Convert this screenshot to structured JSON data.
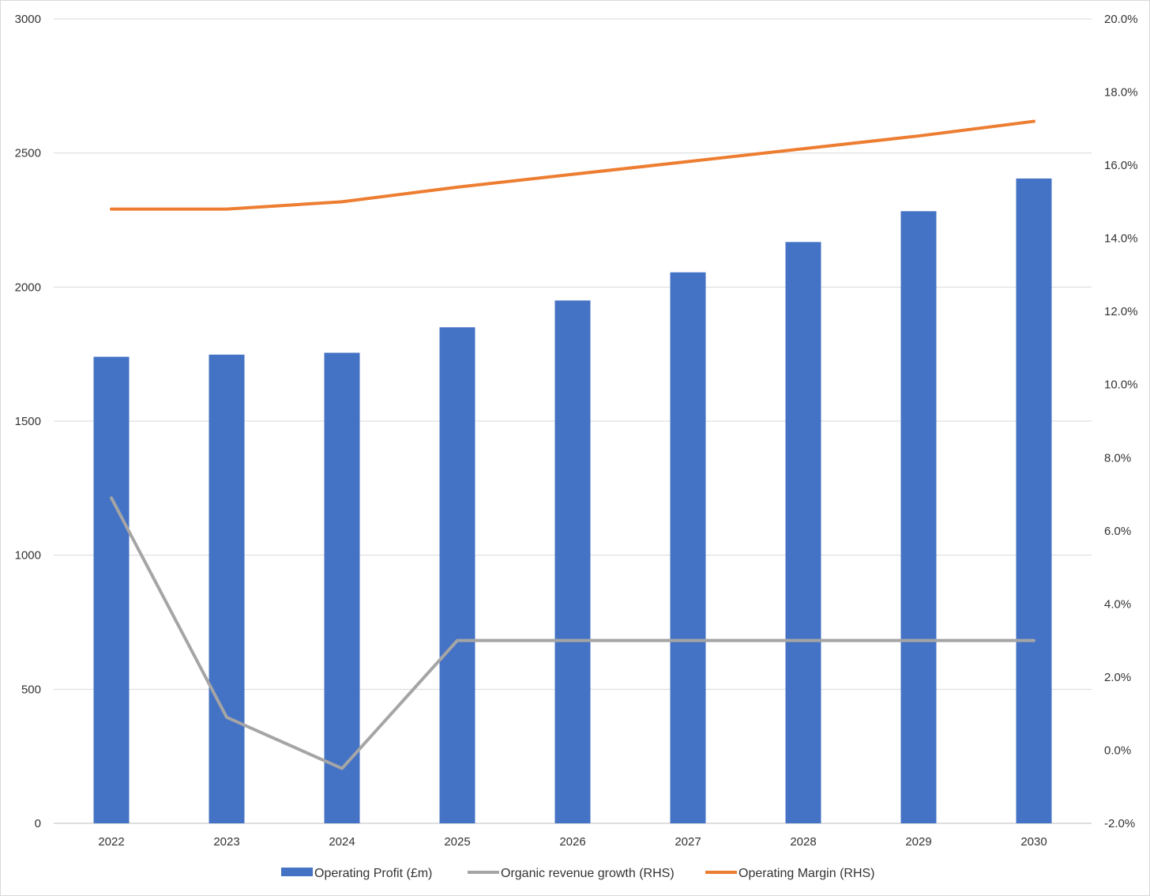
{
  "chart_data": {
    "type": "bar",
    "categories": [
      "2022",
      "2023",
      "2024",
      "2025",
      "2026",
      "2027",
      "2028",
      "2029",
      "2030"
    ],
    "series": [
      {
        "name": "Operating Profit (£m)",
        "type": "bar",
        "axis": "left",
        "color": "#4472C4",
        "values": [
          1740,
          1748,
          1755,
          1850,
          1950,
          2055,
          2168,
          2283,
          2405
        ]
      },
      {
        "name": "Organic revenue growth (RHS)",
        "type": "line",
        "axis": "right",
        "color": "#A5A5A5",
        "values": [
          6.9,
          0.9,
          -0.5,
          3.0,
          3.0,
          3.0,
          3.0,
          3.0,
          3.0
        ]
      },
      {
        "name": "Operating Margin (RHS)",
        "type": "line",
        "axis": "right",
        "color": "#ED7D31",
        "values": [
          14.8,
          14.8,
          15.0,
          15.4,
          15.75,
          16.1,
          16.45,
          16.8,
          17.2
        ]
      }
    ],
    "left_axis": {
      "min": 0,
      "max": 3000,
      "ticks": [
        "0",
        "500",
        "1000",
        "1500",
        "2000",
        "2500",
        "3000"
      ]
    },
    "right_axis": {
      "min": -2.0,
      "max": 20.0,
      "ticks": [
        "-2.0%",
        "0.0%",
        "2.0%",
        "4.0%",
        "6.0%",
        "8.0%",
        "10.0%",
        "12.0%",
        "14.0%",
        "16.0%",
        "18.0%",
        "20.0%"
      ]
    },
    "title": "",
    "xlabel": "",
    "ylabel": "",
    "grid": true,
    "legend_position": "bottom"
  }
}
